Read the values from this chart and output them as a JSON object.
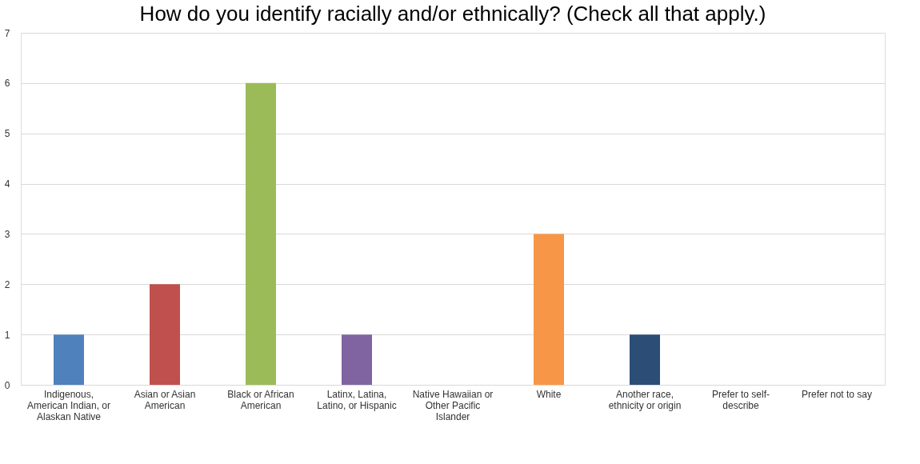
{
  "chart_data": {
    "type": "bar",
    "title": "How do you identify racially and/or ethnically? (Check all that apply.)",
    "categories": [
      "Indigenous, American Indian, or Alaskan Native",
      "Asian or Asian American",
      "Black or African American",
      "Latinx, Latina, Latino, or Hispanic",
      "Native Hawaiian or Other Pacific Islander",
      "White",
      "Another race, ethnicity or origin",
      "Prefer to self-describe",
      "Prefer not to say"
    ],
    "values": [
      1,
      2,
      6,
      1,
      0,
      3,
      1,
      0,
      0
    ],
    "colors": [
      "#4f81bd",
      "#c0504d",
      "#9bbb59",
      "#8064a2",
      "#4bacc6",
      "#f79646",
      "#2c4d75",
      "#772c2a",
      "#5f7530"
    ],
    "ylim": [
      0,
      7
    ],
    "yticks": [
      0,
      1,
      2,
      3,
      4,
      5,
      6,
      7
    ],
    "grid": "y",
    "legend": false
  }
}
